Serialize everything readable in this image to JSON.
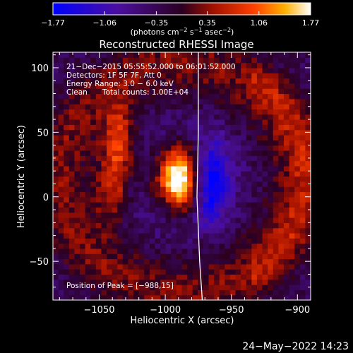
{
  "chart_data": {
    "type": "heatmap",
    "title": "Reconstructed RHESSI Image",
    "xlabel": "Heliocentric X (arcsec)",
    "ylabel": "Heliocentric Y (arcsec)",
    "xlim": [
      -1085,
      -890
    ],
    "ylim": [
      -80,
      112
    ],
    "x_ticks": [
      -1050,
      -1000,
      -950,
      -900
    ],
    "x_tick_labels": [
      "−1050",
      "−1000",
      "−950",
      "−900"
    ],
    "y_ticks": [
      -50,
      0,
      50,
      100
    ],
    "y_tick_labels": [
      "−50",
      "0",
      "50",
      "100"
    ],
    "colorbar": {
      "min": -1.77,
      "max": 1.77,
      "tick_values": [
        -1.77,
        -1.06,
        -0.35,
        0.35,
        1.06,
        1.77
      ],
      "tick_labels": [
        "−1.77",
        "−1.06",
        "−0.35",
        "0.35",
        "1.06",
        "1.77"
      ],
      "units_label": "(photons cm",
      "units_exp1": "−2",
      "units_mid": " s",
      "units_exp2": "−1",
      "units_end": " asec",
      "units_exp3": "−2",
      "units_close": ")"
    },
    "annotations": {
      "line1": "21−Dec−2015 05:55:52.000 to 06:01:52.000",
      "line2": "Detectors: 1F 5F 7F, Att 0",
      "line3": "Energy Range: 3.0 − 6.0 keV",
      "line4_a": "Clean",
      "line4_b": "Total counts: 1.00E+04",
      "peak_label": "Position of Peak = [−988,15]"
    },
    "peak": {
      "x": -988,
      "y": 15,
      "value": 1.77
    },
    "sources": [
      {
        "x": -990,
        "y": 15,
        "amplitude": 1.77,
        "sx": 9,
        "sy": 16
      },
      {
        "x": -1035,
        "y": 42,
        "amplitude": 1.2,
        "sx": 8,
        "sy": 20
      },
      {
        "x": -1040,
        "y": 5,
        "amplitude": 0.9,
        "sx": 8,
        "sy": 18
      },
      {
        "x": -965,
        "y": 12,
        "amplitude": -1.6,
        "sx": 9,
        "sy": 20
      }
    ],
    "limb_curve": [
      [
        -975,
        112
      ],
      [
        -975,
        50
      ],
      [
        -976,
        0
      ],
      [
        -974,
        -50
      ],
      [
        -972,
        -80
      ]
    ],
    "grid": false
  },
  "footer": {
    "timestamp": "24−May−2022 14:23"
  }
}
